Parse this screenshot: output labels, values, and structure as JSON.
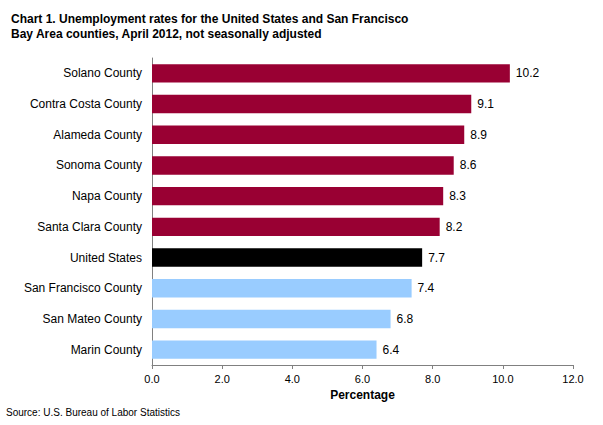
{
  "chart_data": {
    "type": "bar",
    "orientation": "horizontal",
    "title": "Chart 1. Unemployment rates for the United States and San Francisco Bay Area counties, April 2012, not seasonally adjusted",
    "x_label": "Percentage",
    "annotation": "Source: U.S. Bureau of Labor Statistics",
    "categories": [
      "Solano County",
      "Contra Costa County",
      "Alameda County",
      "Sonoma County",
      "Napa County",
      "Santa Clara County",
      "United States",
      "San Francisco County",
      "San Mateo County",
      "Marin County"
    ],
    "values": [
      10.2,
      9.1,
      8.9,
      8.6,
      8.3,
      8.2,
      7.7,
      7.4,
      6.8,
      6.4
    ],
    "colors": [
      "#990033",
      "#990033",
      "#990033",
      "#990033",
      "#990033",
      "#990033",
      "#000000",
      "#99ccff",
      "#99ccff",
      "#99ccff"
    ],
    "xlim": [
      0,
      12
    ],
    "xticks": [
      {
        "value": 0,
        "label": "0.0"
      },
      {
        "value": 2,
        "label": "2.0"
      },
      {
        "value": 4,
        "label": "4.0"
      },
      {
        "value": 6,
        "label": "6.0"
      },
      {
        "value": 8,
        "label": "8.0"
      },
      {
        "value": 10,
        "label": "10.0"
      },
      {
        "value": 12,
        "label": "12.0"
      }
    ],
    "data_labels": true,
    "grid": false
  }
}
